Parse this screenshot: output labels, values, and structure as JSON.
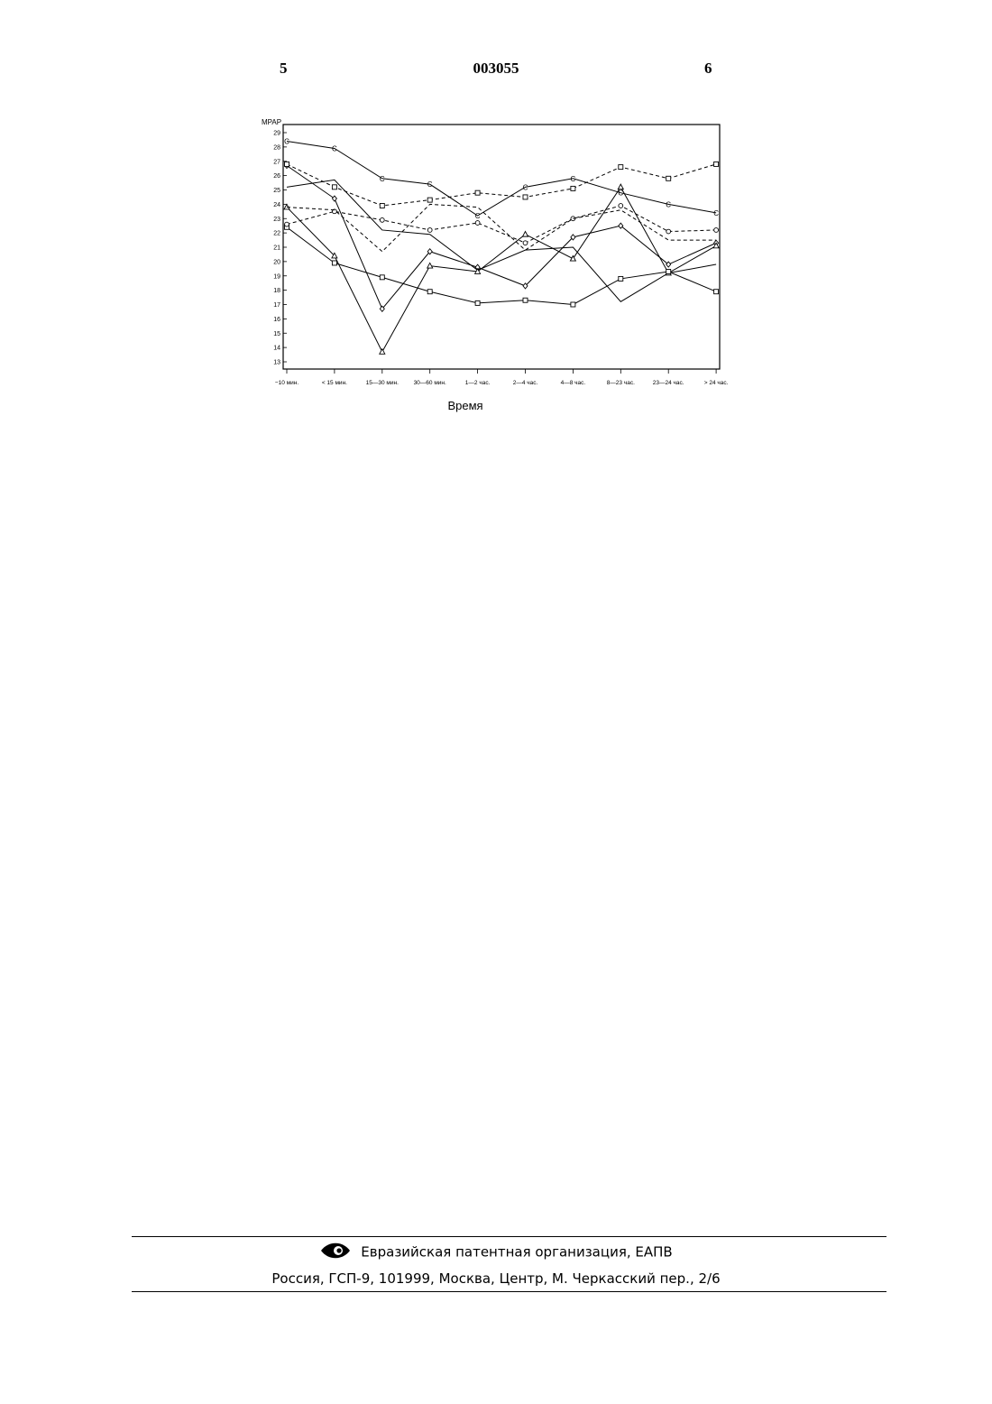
{
  "header": {
    "page_left": "5",
    "doc_number": "003055",
    "page_right": "6"
  },
  "chart_data": {
    "type": "line",
    "ylabel": "MPAP",
    "xlabel": "Время",
    "ylim": [
      13,
      29
    ],
    "yticks": [
      13,
      14,
      15,
      16,
      17,
      18,
      19,
      20,
      21,
      22,
      23,
      24,
      25,
      26,
      27,
      28,
      29
    ],
    "categories": [
      "−10 мин.",
      "< 15 мин.",
      "15—30 мин.",
      "30—60 мин.",
      "1—2 час.",
      "2—4 час.",
      "4—8 час.",
      "8—23 час.",
      "23—24 час.",
      "> 24 час."
    ],
    "grid": false,
    "series": [
      {
        "dash": false,
        "marker": "C",
        "values": [
          28.4,
          27.9,
          25.8,
          25.4,
          23.2,
          25.2,
          25.8,
          24.8,
          24.0,
          23.4
        ]
      },
      {
        "dash": false,
        "marker": "",
        "values": [
          25.2,
          25.7,
          22.2,
          21.9,
          19.4,
          20.8,
          21.0,
          17.2,
          19.2,
          19.8
        ]
      },
      {
        "dash": false,
        "marker": "diamond",
        "values": [
          26.7,
          24.4,
          16.7,
          20.7,
          19.6,
          18.3,
          21.7,
          22.5,
          19.8,
          21.3
        ]
      },
      {
        "dash": false,
        "marker": "triangle",
        "values": [
          23.8,
          20.4,
          13.7,
          19.7,
          19.3,
          21.9,
          20.2,
          25.2,
          19.2,
          21.1
        ]
      },
      {
        "dash": false,
        "marker": "square",
        "values": [
          22.4,
          19.9,
          18.9,
          17.9,
          17.1,
          17.3,
          17.0,
          18.8,
          19.3,
          17.9
        ]
      },
      {
        "dash": true,
        "marker": "square",
        "values": [
          26.8,
          25.2,
          23.9,
          24.3,
          24.8,
          24.5,
          25.1,
          26.6,
          25.8,
          26.8
        ]
      },
      {
        "dash": true,
        "marker": "circle",
        "values": [
          22.6,
          23.5,
          22.9,
          22.2,
          22.7,
          21.3,
          23.0,
          23.9,
          22.1,
          22.2
        ]
      },
      {
        "dash": true,
        "marker": "",
        "values": [
          23.8,
          23.6,
          20.7,
          24.0,
          23.8,
          20.8,
          23.0,
          23.6,
          21.5,
          21.5
        ]
      }
    ]
  },
  "footer": {
    "org": "Евразийская патентная организация, ЕАПВ",
    "address": "Россия, ГСП-9, 101999, Москва, Центр, М. Черкасский пер., 2/6"
  }
}
